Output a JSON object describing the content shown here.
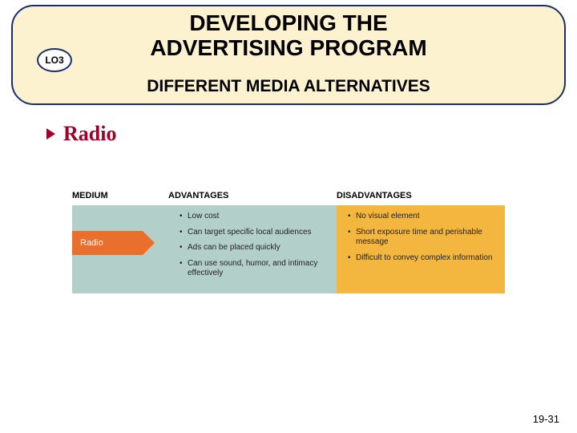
{
  "header": {
    "lo_label": "LO3",
    "title_line1": "DEVELOPING THE",
    "title_line2": "ADVERTISING PROGRAM",
    "subtitle": "DIFFERENT MEDIA ALTERNATIVES"
  },
  "bullet": {
    "text": "Radio",
    "color": "#a00028"
  },
  "table": {
    "columns": [
      "MEDIUM",
      "ADVANTAGES",
      "DISADVANTAGES"
    ],
    "medium_label": "Radio",
    "advantages": [
      "Low cost",
      "Can target specific local audiences",
      "Ads can be placed quickly",
      "Can use sound, humor, and intimacy effectively"
    ],
    "disadvantages": [
      "No visual element",
      "Short exposure time and perishable message",
      "Difficult to convey complex information"
    ],
    "colors": {
      "header_box_bg": "#fdf2d0",
      "header_box_border": "#1a2e6e",
      "medium_bg": "#b3cfc9",
      "adv_bg": "#b3cfc9",
      "dis_bg": "#f3b63f",
      "arrow_bg": "#e86f2c",
      "arrow_text": "#ffffff"
    }
  },
  "footer": {
    "page": "19-31"
  }
}
